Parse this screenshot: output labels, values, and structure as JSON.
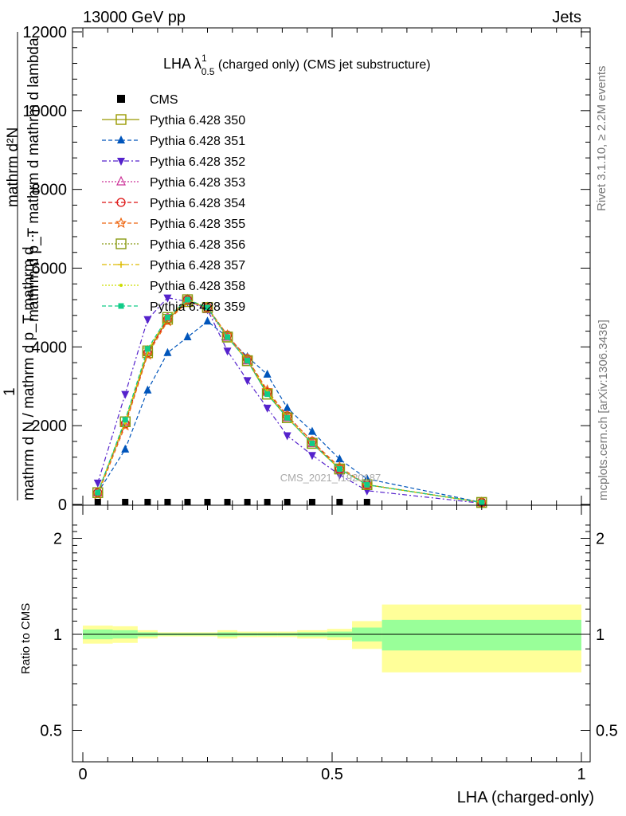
{
  "header": {
    "energy_label": "13000 GeV pp",
    "category_label": "Jets",
    "rivet_label": "Rivet 3.1.10, ≥ 2.2M events",
    "mcplots_label": "mcplots.cern.ch [arXiv:1306.3436]",
    "analysis_id": "CMS_2021_I1920187"
  },
  "colors": {
    "data": "#000000",
    "band_inner": "#99ff99",
    "band_outer": "#ffff99"
  },
  "chart_data": [
    {
      "type": "line",
      "panel": "main",
      "title_main": "LHA λ",
      "title_sub": "0.5",
      "title_sup": "1",
      "title_rest": " (charged only) (CMS jet substructure)",
      "ylabel_top": "mathrm d²N",
      "ylabel_mid": "mathrm d p_T mathrm d mathrm d lambda",
      "ylabel_one": "1",
      "ylabel_bottom": "mathrm d N / mathrm d p_T mathrm d ...",
      "xlim": [
        0,
        1
      ],
      "ylim": [
        0,
        12000
      ],
      "y_ticks": [
        0,
        2000,
        4000,
        6000,
        8000,
        10000,
        12000
      ],
      "y_tick_labels": [
        "0",
        "2000",
        "4000",
        "6000",
        "8000",
        "10000",
        "12000"
      ],
      "x_bins": [
        0.03,
        0.085,
        0.13,
        0.17,
        0.21,
        0.25,
        0.29,
        0.33,
        0.37,
        0.41,
        0.46,
        0.515,
        0.57,
        0.8
      ],
      "series": [
        {
          "name": "CMS",
          "color": "#000000",
          "marker": "square-filled",
          "dash": "none",
          "values": [
            0,
            0,
            0,
            0,
            0,
            0,
            0,
            0,
            0,
            0,
            0,
            0,
            0,
            0
          ]
        },
        {
          "name": "Pythia 6.428 350",
          "color": "#999900",
          "marker": "square-open",
          "dash": "solid",
          "values": [
            300,
            2100,
            3850,
            4700,
            5150,
            5000,
            4250,
            3650,
            2800,
            2200,
            1550,
            900,
            500,
            50
          ]
        },
        {
          "name": "Pythia 6.428 351",
          "color": "#0055bb",
          "marker": "triangle-up-filled",
          "dash": "5,3",
          "values": [
            300,
            1400,
            2900,
            3850,
            4250,
            4650,
            4250,
            3750,
            3300,
            2450,
            1850,
            1150,
            650,
            50
          ]
        },
        {
          "name": "Pythia 6.428 352",
          "color": "#5522cc",
          "marker": "triangle-down-filled",
          "dash": "6,3,2,3",
          "values": [
            550,
            2800,
            4700,
            5250,
            5150,
            4950,
            3900,
            3150,
            2450,
            1750,
            1250,
            750,
            350,
            30
          ]
        },
        {
          "name": "Pythia 6.428 353",
          "color": "#cc3399",
          "marker": "triangle-up-open",
          "dash": "2,2",
          "values": [
            300,
            2100,
            3900,
            4750,
            5200,
            4950,
            4250,
            3650,
            2850,
            2200,
            1550,
            900,
            500,
            50
          ]
        },
        {
          "name": "Pythia 6.428 354",
          "color": "#dd1111",
          "marker": "circle-open",
          "dash": "5,3",
          "values": [
            300,
            2050,
            3850,
            4700,
            5200,
            5000,
            4300,
            3700,
            2850,
            2250,
            1600,
            900,
            500,
            50
          ]
        },
        {
          "name": "Pythia 6.428 355",
          "color": "#ee6611",
          "marker": "star-open",
          "dash": "5,3",
          "values": [
            250,
            2000,
            3800,
            4650,
            5150,
            5000,
            4300,
            3700,
            2900,
            2250,
            1600,
            950,
            500,
            50
          ]
        },
        {
          "name": "Pythia 6.428 356",
          "color": "#889911",
          "marker": "square-open",
          "dash": "2,2",
          "values": [
            300,
            2100,
            3900,
            4750,
            5200,
            5000,
            4250,
            3650,
            2800,
            2200,
            1550,
            900,
            500,
            50
          ]
        },
        {
          "name": "Pythia 6.428 357",
          "color": "#ddbb00",
          "marker": "cross",
          "dash": "6,3,2,3",
          "values": [
            300,
            2100,
            3900,
            4750,
            5200,
            5000,
            4250,
            3650,
            2850,
            2200,
            1550,
            900,
            500,
            50
          ]
        },
        {
          "name": "Pythia 6.428 358",
          "color": "#ccdd00",
          "marker": "dot",
          "dash": "2,2",
          "values": [
            300,
            2100,
            3900,
            4750,
            5200,
            5000,
            4250,
            3650,
            2850,
            2200,
            1550,
            900,
            500,
            50
          ]
        },
        {
          "name": "Pythia 6.428 359",
          "color": "#11cc88",
          "marker": "square-filled-small",
          "dash": "5,3",
          "values": [
            300,
            2150,
            3950,
            4750,
            5200,
            5000,
            4250,
            3650,
            2800,
            2200,
            1550,
            900,
            500,
            50
          ]
        }
      ]
    },
    {
      "type": "area",
      "panel": "ratio",
      "ylabel": "Ratio to CMS",
      "xlabel": "LHA (charged-only)",
      "xlim": [
        0,
        1
      ],
      "ylim": [
        0.4,
        2.3
      ],
      "y_ticks": [
        0.5,
        1,
        2
      ],
      "y_tick_labels": [
        "0.5",
        "1",
        "2"
      ],
      "x_ticks": [
        0,
        0.5,
        1
      ],
      "x_tick_labels": [
        "0",
        "0.5",
        "1"
      ],
      "bins": [
        {
          "lo": 0.0,
          "hi": 0.06,
          "inner": [
            0.965,
            1.035
          ],
          "outer": [
            0.935,
            1.065
          ]
        },
        {
          "lo": 0.06,
          "hi": 0.11,
          "inner": [
            0.97,
            1.03
          ],
          "outer": [
            0.94,
            1.06
          ]
        },
        {
          "lo": 0.11,
          "hi": 0.15,
          "inner": [
            0.985,
            1.015
          ],
          "outer": [
            0.97,
            1.03
          ]
        },
        {
          "lo": 0.15,
          "hi": 0.19,
          "inner": [
            0.992,
            1.008
          ],
          "outer": [
            0.985,
            1.015
          ]
        },
        {
          "lo": 0.19,
          "hi": 0.23,
          "inner": [
            0.992,
            1.008
          ],
          "outer": [
            0.985,
            1.015
          ]
        },
        {
          "lo": 0.23,
          "hi": 0.27,
          "inner": [
            0.992,
            1.008
          ],
          "outer": [
            0.985,
            1.015
          ]
        },
        {
          "lo": 0.27,
          "hi": 0.31,
          "inner": [
            0.985,
            1.015
          ],
          "outer": [
            0.97,
            1.03
          ]
        },
        {
          "lo": 0.31,
          "hi": 0.35,
          "inner": [
            0.99,
            1.01
          ],
          "outer": [
            0.98,
            1.02
          ]
        },
        {
          "lo": 0.35,
          "hi": 0.39,
          "inner": [
            0.99,
            1.01
          ],
          "outer": [
            0.98,
            1.02
          ]
        },
        {
          "lo": 0.39,
          "hi": 0.43,
          "inner": [
            0.99,
            1.01
          ],
          "outer": [
            0.98,
            1.02
          ]
        },
        {
          "lo": 0.43,
          "hi": 0.49,
          "inner": [
            0.985,
            1.015
          ],
          "outer": [
            0.97,
            1.03
          ]
        },
        {
          "lo": 0.49,
          "hi": 0.54,
          "inner": [
            0.98,
            1.02
          ],
          "outer": [
            0.96,
            1.04
          ]
        },
        {
          "lo": 0.54,
          "hi": 0.6,
          "inner": [
            0.95,
            1.05
          ],
          "outer": [
            0.9,
            1.1
          ]
        },
        {
          "lo": 0.6,
          "hi": 1.0,
          "inner": [
            0.89,
            1.11
          ],
          "outer": [
            0.76,
            1.24
          ]
        }
      ]
    }
  ]
}
